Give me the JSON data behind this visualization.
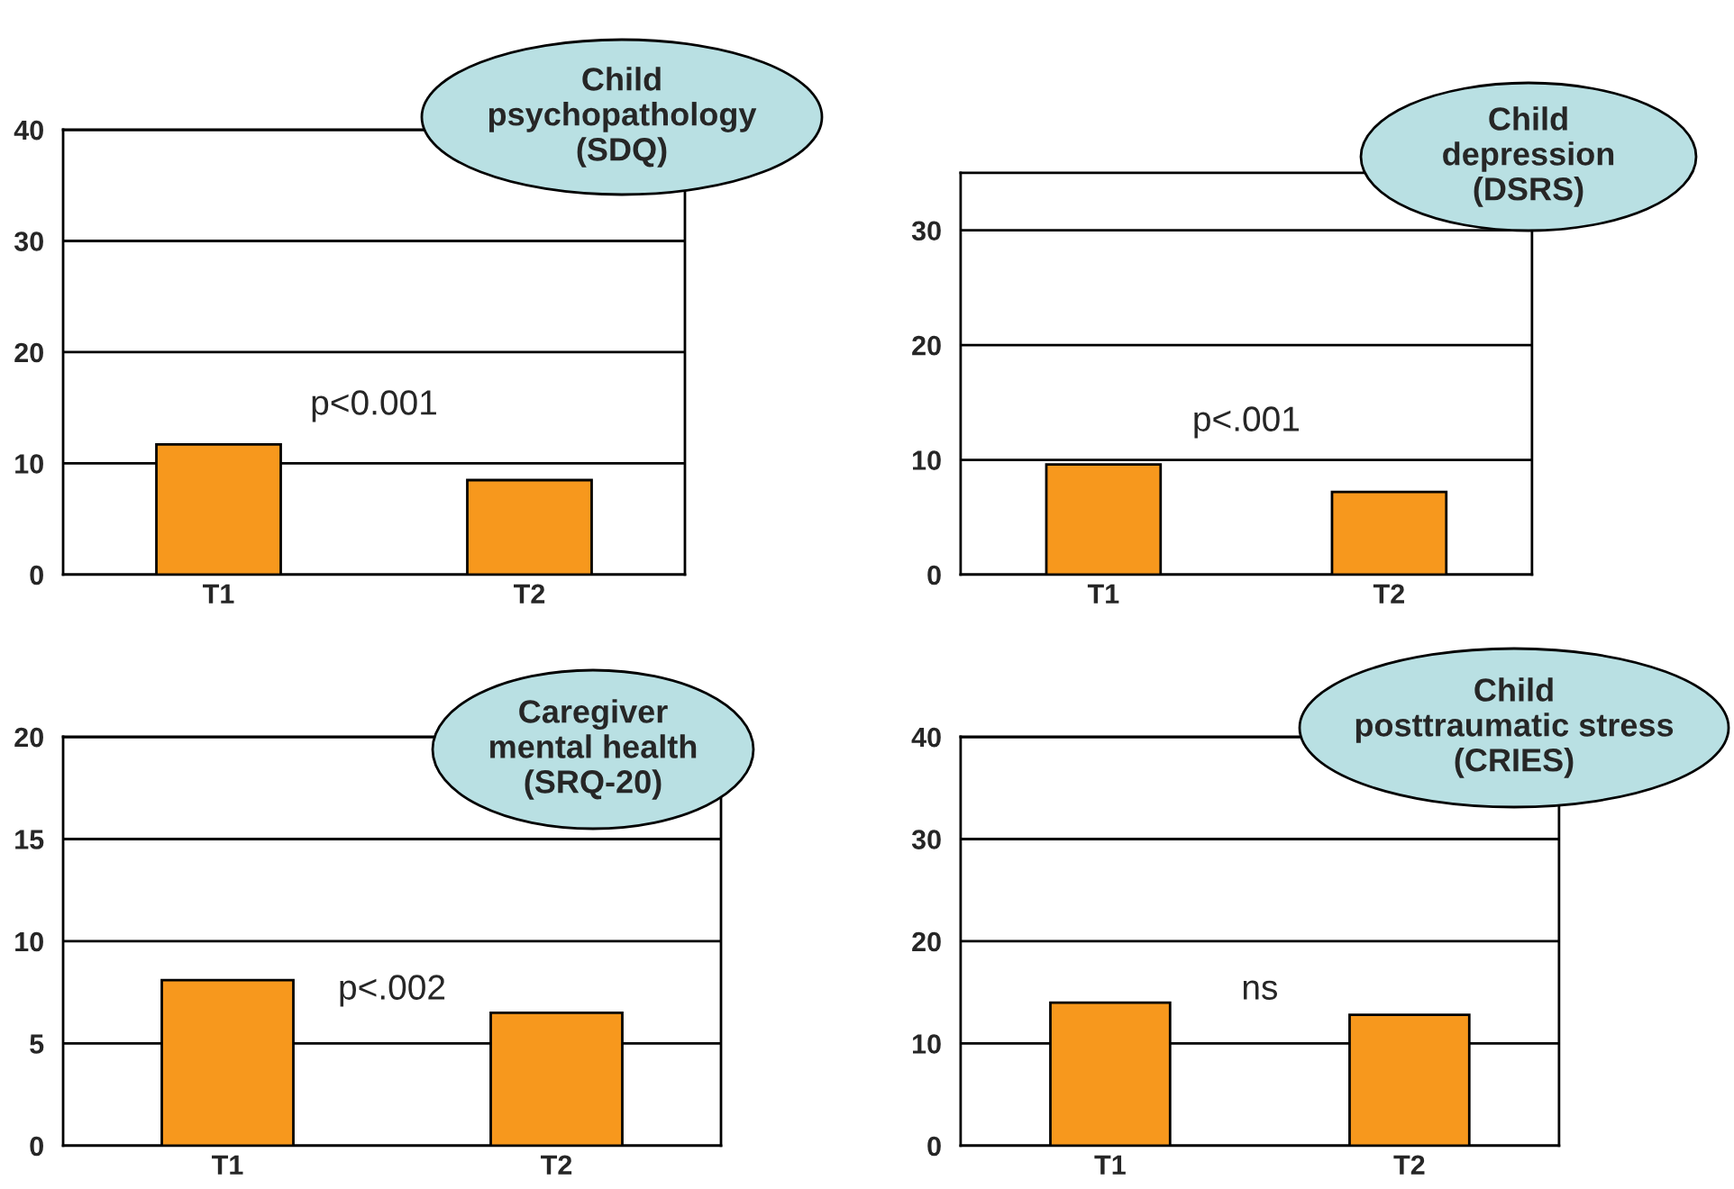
{
  "chart_data": [
    {
      "type": "bar",
      "title": "Child\npsychopathology\n(SDQ)",
      "categories": [
        "T1",
        "T2"
      ],
      "values": [
        11.7,
        8.5
      ],
      "color": "#f7981d",
      "ylim": [
        0,
        40
      ],
      "yticks": [
        0,
        10,
        20,
        30,
        40
      ],
      "grid": "y",
      "annotations": [
        "p<0.001"
      ]
    },
    {
      "type": "bar",
      "title": "Child\ndepression\n(DSRS)",
      "categories": [
        "T1",
        "T2"
      ],
      "values": [
        9.6,
        7.2
      ],
      "color": "#f7981d",
      "ylim": [
        0,
        35
      ],
      "yticks": [
        0,
        10,
        20,
        30
      ],
      "grid": "y",
      "annotations": [
        "p<.001"
      ]
    },
    {
      "type": "bar",
      "title": "Caregiver\nmental health\n(SRQ-20)",
      "categories": [
        "T1",
        "T2"
      ],
      "values": [
        8.1,
        6.5
      ],
      "color": "#f7981d",
      "ylim": [
        0,
        20
      ],
      "yticks": [
        0,
        5,
        10,
        15,
        20
      ],
      "grid": "y",
      "annotations": [
        "p<.002"
      ]
    },
    {
      "type": "bar",
      "title": "Child\nposttraumatic stress\n(CRIES)",
      "categories": [
        "T1",
        "T2"
      ],
      "values": [
        14,
        12.8
      ],
      "color": "#f7981d",
      "ylim": [
        0,
        40
      ],
      "yticks": [
        0,
        10,
        20,
        30,
        40
      ],
      "grid": "y",
      "annotations": [
        "ns"
      ]
    }
  ]
}
